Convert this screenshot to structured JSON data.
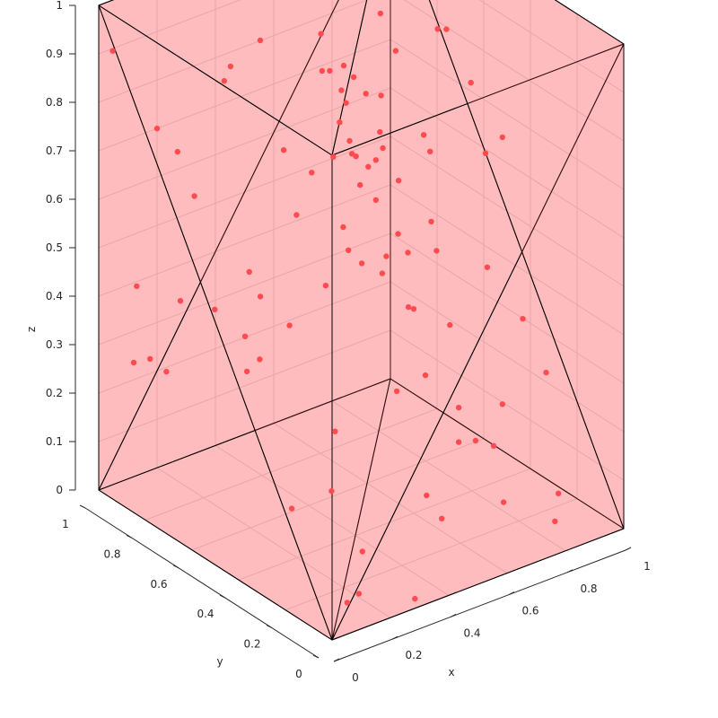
{
  "chart_data": {
    "type": "scatter",
    "title": "",
    "xlabel": "x",
    "ylabel": "y",
    "zlabel": "z",
    "xlim": [
      0,
      1
    ],
    "ylim": [
      0,
      1
    ],
    "zlim": [
      0,
      1
    ],
    "x_ticks": [
      "0",
      "0.2",
      "0.4",
      "0.6",
      "0.8",
      "1"
    ],
    "y_ticks": [
      "0",
      "0.2",
      "0.4",
      "0.6",
      "0.8",
      "1"
    ],
    "z_ticks": [
      "0",
      "0.1",
      "0.2",
      "0.3",
      "0.4",
      "0.5",
      "0.6",
      "0.7",
      "0.8",
      "0.9",
      "1"
    ],
    "grid": true,
    "colors": {
      "points": "#ff4b50",
      "hull_fill": "#ff4b50",
      "hull_edge": "#000000"
    },
    "hull_fill_opacity": 0.45,
    "hull_vertices": [
      [
        0,
        0,
        0
      ],
      [
        1,
        0,
        0
      ],
      [
        1,
        1,
        0
      ],
      [
        0,
        1,
        0
      ],
      [
        0,
        0,
        1
      ],
      [
        1,
        0,
        1
      ],
      [
        1,
        1,
        1
      ],
      [
        0,
        1,
        1
      ]
    ],
    "hull_triangles": [
      [
        0,
        1,
        2
      ],
      [
        0,
        2,
        3
      ],
      [
        4,
        6,
        5
      ],
      [
        4,
        7,
        6
      ],
      [
        0,
        5,
        1
      ],
      [
        0,
        4,
        5
      ],
      [
        3,
        2,
        6
      ],
      [
        3,
        6,
        7
      ],
      [
        0,
        7,
        4
      ],
      [
        0,
        3,
        7
      ],
      [
        1,
        5,
        6
      ],
      [
        1,
        6,
        2
      ]
    ],
    "points": [
      [
        0.04,
        0.99,
        0.9
      ],
      [
        0.2,
        1.0,
        0.7
      ],
      [
        0.39,
        0.95,
        0.77
      ],
      [
        0.42,
        0.96,
        0.79
      ],
      [
        0.49,
        0.92,
        0.84
      ],
      [
        0.33,
        0.02,
        0.96
      ],
      [
        0.65,
        0.36,
        1.0
      ],
      [
        0.86,
        0.74,
        1.0
      ],
      [
        0.91,
        0.81,
        1.0
      ],
      [
        0.96,
        0.93,
        0.99
      ],
      [
        0.31,
        0.43,
        0.97
      ],
      [
        0.21,
        0.16,
        0.9
      ],
      [
        0.4,
        0.44,
        0.88
      ],
      [
        0.4,
        0.46,
        0.9
      ],
      [
        0.52,
        0.6,
        0.88
      ],
      [
        0.34,
        0.34,
        0.82
      ],
      [
        0.37,
        0.43,
        0.85
      ],
      [
        0.44,
        0.56,
        0.9
      ],
      [
        0.38,
        0.32,
        0.79
      ],
      [
        0.35,
        0.25,
        0.75
      ],
      [
        0.34,
        0.1,
        0.69
      ],
      [
        0.61,
        0.8,
        0.98
      ],
      [
        0.79,
        0.78,
        0.87
      ],
      [
        0.85,
        0.92,
        0.99
      ],
      [
        0.73,
        0.64,
        0.85
      ],
      [
        0.9,
        0.92,
        0.93
      ],
      [
        0.62,
        0.63,
        0.79
      ],
      [
        0.27,
        0.29,
        0.7
      ],
      [
        0.33,
        0.18,
        0.66
      ],
      [
        0.27,
        0.21,
        0.65
      ],
      [
        0.48,
        0.48,
        0.68
      ],
      [
        0.54,
        0.6,
        0.72
      ],
      [
        0.61,
        0.81,
        0.86
      ],
      [
        0.95,
        0.81,
        0.92
      ],
      [
        0.71,
        0.23,
        0.77
      ],
      [
        0.8,
        0.27,
        0.77
      ],
      [
        0.45,
        0.65,
        0.66
      ],
      [
        0.5,
        0.62,
        0.69
      ],
      [
        0.15,
        0.37,
        0.5
      ],
      [
        0.15,
        0.85,
        0.71
      ],
      [
        0.44,
        0.2,
        0.52
      ],
      [
        0.2,
        0.84,
        0.61
      ],
      [
        0.05,
        0.9,
        0.44
      ],
      [
        0.08,
        0.95,
        0.26
      ],
      [
        0.16,
        0.98,
        0.24
      ],
      [
        0.63,
        0.6,
        0.66
      ],
      [
        0.7,
        0.67,
        0.68
      ],
      [
        0.76,
        0.74,
        0.72
      ],
      [
        0.96,
        0.71,
        0.82
      ],
      [
        0.98,
        0.63,
        0.73
      ],
      [
        0.12,
        0.86,
        0.26
      ],
      [
        0.54,
        0.46,
        0.49
      ],
      [
        0.74,
        0.64,
        0.58
      ],
      [
        0.75,
        0.72,
        0.62
      ],
      [
        0.84,
        0.63,
        0.62
      ],
      [
        0.73,
        0.82,
        0.74
      ],
      [
        0.48,
        0.53,
        0.53
      ],
      [
        0.41,
        0.54,
        0.47
      ],
      [
        0.45,
        0.02,
        0.37
      ],
      [
        0.06,
        0.01,
        0.06
      ],
      [
        0.11,
        0.31,
        0.15
      ],
      [
        0.31,
        0.76,
        0.32
      ],
      [
        0.27,
        0.84,
        0.36
      ],
      [
        0.83,
        0.59,
        0.43
      ],
      [
        0.9,
        0.7,
        0.44
      ],
      [
        0.6,
        0.35,
        0.3
      ],
      [
        0.74,
        0.42,
        0.35
      ],
      [
        0.46,
        0.17,
        0.14
      ],
      [
        0.55,
        0.41,
        0.26
      ],
      [
        0.48,
        0.13,
        0.1
      ],
      [
        0.7,
        0.26,
        0.17
      ],
      [
        0.7,
        0.14,
        0.08
      ],
      [
        0.77,
        0.27,
        0.14
      ],
      [
        0.88,
        0.37,
        0.17
      ],
      [
        0.88,
        0.13,
        0.06
      ],
      [
        0.86,
        0.12,
        0.01
      ],
      [
        0.18,
        0.11,
        0.02
      ],
      [
        0.3,
        0.02,
        0.01
      ],
      [
        0.28,
        0.22,
        0.05
      ],
      [
        0.27,
        0.34,
        0.14
      ],
      [
        0.53,
        0.87,
        0.62
      ],
      [
        0.33,
        0.72,
        0.41
      ],
      [
        0.34,
        0.78,
        0.44
      ],
      [
        0.47,
        0.74,
        0.54
      ],
      [
        0.2,
        0.56,
        0.36
      ],
      [
        0.16,
        0.85,
        0.4
      ],
      [
        0.25,
        0.3,
        0.28
      ],
      [
        0.18,
        0.59,
        0.33
      ],
      [
        0.63,
        0.46,
        0.4
      ],
      [
        0.69,
        0.58,
        0.5
      ],
      [
        0.61,
        0.22,
        0.2
      ],
      [
        0.95,
        0.27,
        0.25
      ],
      [
        0.95,
        0.37,
        0.33
      ],
      [
        0.9,
        0.46,
        0.42
      ]
    ]
  }
}
